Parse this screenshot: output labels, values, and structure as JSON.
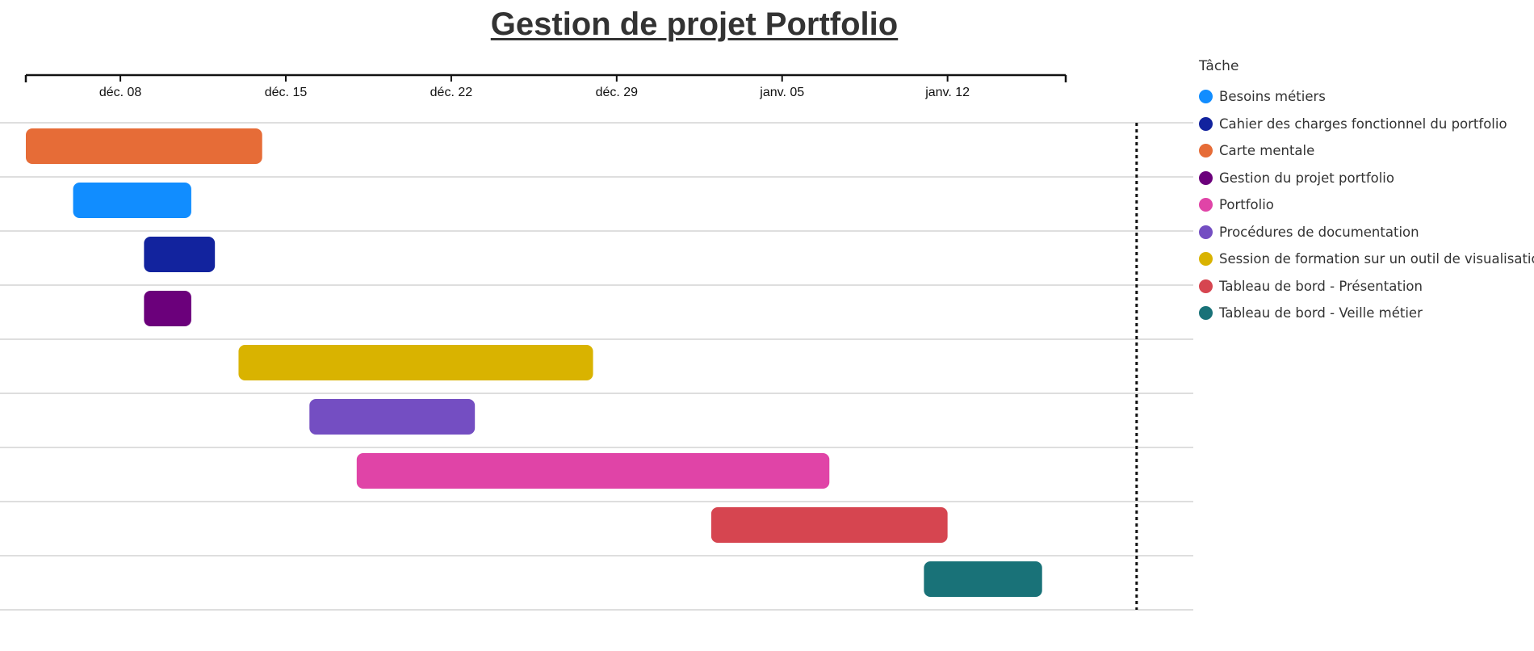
{
  "chart_data": {
    "type": "gantt",
    "title": "Gestion de projet Portfolio",
    "x_axis": {
      "type": "date",
      "range": [
        "2024-12-04",
        "2025-01-17"
      ],
      "ticks": [
        {
          "date": "2024-12-08",
          "label": "déc. 08"
        },
        {
          "date": "2024-12-15",
          "label": "déc. 15"
        },
        {
          "date": "2024-12-22",
          "label": "déc. 22"
        },
        {
          "date": "2024-12-29",
          "label": "déc. 29"
        },
        {
          "date": "2025-01-05",
          "label": "janv. 05"
        },
        {
          "date": "2025-01-12",
          "label": "janv. 12"
        }
      ]
    },
    "marker_date": "2025-01-20",
    "tasks": [
      {
        "name": "Carte mentale",
        "start": "2024-12-04",
        "end": "2024-12-14"
      },
      {
        "name": "Besoins métiers",
        "start": "2024-12-06",
        "end": "2024-12-11"
      },
      {
        "name": "Cahier des charges fonctionnel du portfolio",
        "start": "2024-12-09",
        "end": "2024-12-12"
      },
      {
        "name": "Gestion du projet portfolio",
        "start": "2024-12-09",
        "end": "2024-12-11"
      },
      {
        "name": "Session de formation sur un outil de visualisation",
        "start": "2024-12-13",
        "end": "2024-12-28"
      },
      {
        "name": "Procédures de documentation",
        "start": "2024-12-16",
        "end": "2024-12-23"
      },
      {
        "name": "Portfolio",
        "start": "2024-12-18",
        "end": "2025-01-07"
      },
      {
        "name": "Tableau de bord - Présentation",
        "start": "2025-01-02",
        "end": "2025-01-12"
      },
      {
        "name": "Tableau de bord - Veille métier",
        "start": "2025-01-11",
        "end": "2025-01-16"
      }
    ],
    "legend": {
      "title": "Tâche",
      "placement": "right",
      "items": [
        {
          "name": "Besoins métiers",
          "color": "#118DFF"
        },
        {
          "name": "Cahier des charges fonctionnel du portfolio",
          "color": "#12239E"
        },
        {
          "name": "Carte mentale",
          "color": "#E66C37"
        },
        {
          "name": "Gestion du projet portfolio",
          "color": "#6B007B"
        },
        {
          "name": "Portfolio",
          "color": "#E044A7"
        },
        {
          "name": "Procédures de documentation",
          "color": "#744EC2"
        },
        {
          "name": "Session de formation sur un outil de visualisation",
          "color": "#D9B300"
        },
        {
          "name": "Tableau de bord - Présentation",
          "color": "#D64550"
        },
        {
          "name": "Tableau de bord - Veille métier",
          "color": "#197278"
        }
      ]
    }
  }
}
